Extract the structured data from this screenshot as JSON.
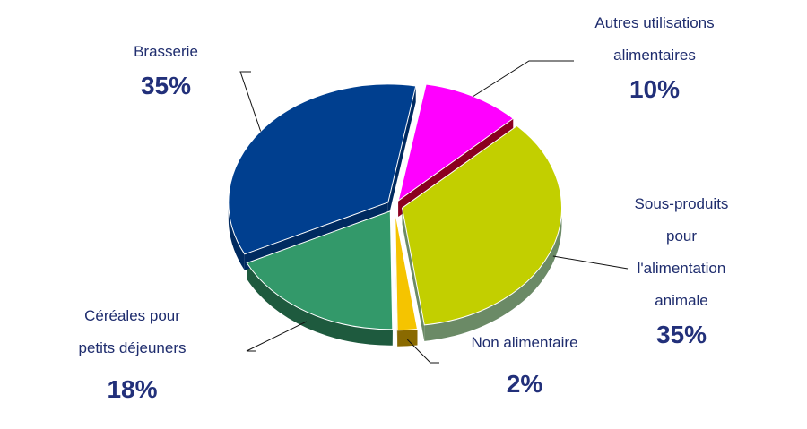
{
  "chart_data": {
    "type": "pie",
    "title": "",
    "slices": [
      {
        "label": "Autres utilisations alimentaires",
        "label_lines": [
          "Autres utilisations",
          "alimentaires"
        ],
        "value": 10,
        "value_label": "10%",
        "color": "#ff00ff",
        "side_color": "#8b0020"
      },
      {
        "label": "Sous-produits pour l'alimentation animale",
        "label_lines": [
          "Sous-produits",
          "pour",
          "l'alimentation",
          "animale"
        ],
        "value": 35,
        "value_label": "35%",
        "color": "#c2cf00",
        "side_color": "#6b8a66"
      },
      {
        "label": "Non alimentaire",
        "label_lines": [
          "Non alimentaire"
        ],
        "value": 2,
        "value_label": "2%",
        "color": "#f5c400",
        "side_color": "#8a6a00"
      },
      {
        "label": "Céréales pour petits déjeuners",
        "label_lines": [
          "Céréales pour",
          "petits déjeuners"
        ],
        "value": 18,
        "value_label": "18%",
        "color": "#33996a",
        "side_color": "#1e5a3e"
      },
      {
        "label": "Brasserie",
        "label_lines": [
          "Brasserie"
        ],
        "value": 35,
        "value_label": "35%",
        "color": "#003f8f",
        "side_color": "#002a60"
      }
    ]
  }
}
